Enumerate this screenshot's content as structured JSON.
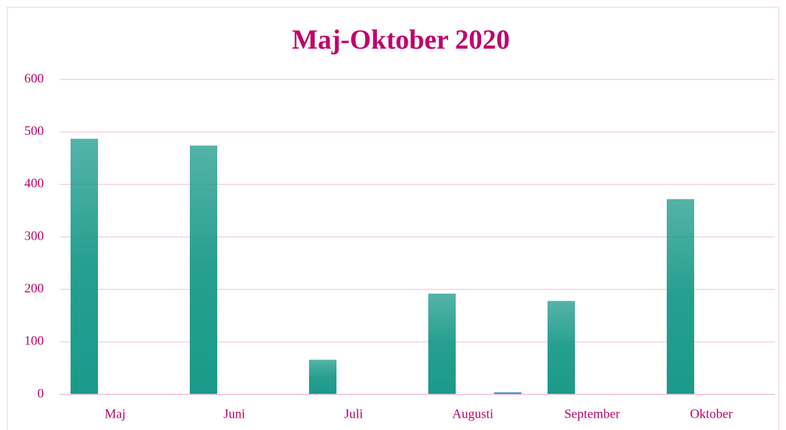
{
  "chart_data": {
    "type": "bar",
    "title": "Maj-Oktober 2020",
    "categories": [
      "Maj",
      "Juni",
      "Juli",
      "Augusti",
      "September",
      "Oktober"
    ],
    "series": [
      {
        "color": "#1a9a8a",
        "values": [
          487,
          474,
          66,
          192,
          178,
          372
        ]
      },
      {
        "color": "#3a7cc8",
        "values": [
          0,
          0,
          0,
          4,
          0,
          0
        ]
      }
    ],
    "ylim": [
      0,
      600
    ],
    "yticks": [
      0,
      100,
      200,
      300,
      400,
      500,
      600
    ],
    "grid": true
  }
}
